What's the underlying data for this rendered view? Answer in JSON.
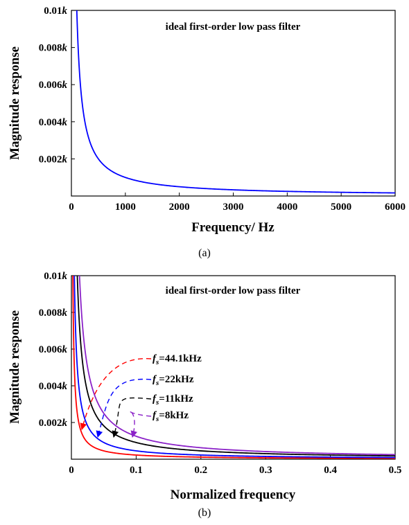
{
  "chart_data": [
    {
      "type": "line",
      "panel_label": "(a)",
      "title": "ideal first-order low pass filter",
      "xlabel": "Frequency/ Hz",
      "ylabel": "Magnitude response",
      "xlim": [
        0,
        6000
      ],
      "ylim": [
        0,
        0.01
      ],
      "x_ticks": [
        "0",
        "1000",
        "2000",
        "3000",
        "4000",
        "5000",
        "6000"
      ],
      "y_ticks": [
        {
          "value": 0.002,
          "num": "0.002",
          "sym": "k"
        },
        {
          "value": 0.004,
          "num": "0.004",
          "sym": "k"
        },
        {
          "value": 0.006,
          "num": "0.006",
          "sym": "k"
        },
        {
          "value": 0.008,
          "num": "0.008",
          "sym": "k"
        },
        {
          "value": 0.01,
          "num": "0.01",
          "sym": "k"
        }
      ],
      "grid": false,
      "series": [
        {
          "color": "#0000ff",
          "x": [
            100,
            150,
            200,
            250,
            300,
            400,
            500,
            700,
            1000,
            1500,
            2000,
            3000,
            4000,
            5000,
            6000
          ],
          "y": [
            0.01,
            0.00667,
            0.005,
            0.004,
            0.00333,
            0.0025,
            0.002,
            0.00143,
            0.001,
            0.000667,
            0.0005,
            0.000333,
            0.00025,
            0.0002,
            0.000167
          ]
        }
      ]
    },
    {
      "type": "line",
      "panel_label": "(b)",
      "title": "ideal first-order low pass filter",
      "xlabel": "Normalized frequency",
      "ylabel": "Magnitude response",
      "xlim": [
        0,
        0.5
      ],
      "ylim": [
        0,
        0.01
      ],
      "x_ticks": [
        "0",
        "0.1",
        "0.2",
        "0.3",
        "0.4",
        "0.5"
      ],
      "y_ticks": [
        {
          "value": 0.002,
          "num": "0.002",
          "sym": "k"
        },
        {
          "value": 0.004,
          "num": "0.004",
          "sym": "k"
        },
        {
          "value": 0.006,
          "num": "0.006",
          "sym": "k"
        },
        {
          "value": 0.008,
          "num": "0.008",
          "sym": "k"
        },
        {
          "value": 0.01,
          "num": "0.01",
          "sym": "k"
        }
      ],
      "grid": false,
      "series": [
        {
          "label_sym": "f",
          "label_sub": "s",
          "label_rest": "=44.1kHz",
          "color": "#ff0000",
          "c": 2.27e-05,
          "start": 0.00227
        },
        {
          "label_sym": "f",
          "label_sub": "s",
          "label_rest": "=22kHz",
          "color": "#0000ff",
          "c": 4.55e-05,
          "start": 0.00455
        },
        {
          "label_sym": "f",
          "label_sub": "s",
          "label_rest": "=11kHz",
          "color": "#000000",
          "c": 9.09e-05,
          "start": 0.00909
        },
        {
          "label_sym": "f",
          "label_sub": "s",
          "label_rest": "=8kHz",
          "color": "#8b22c8",
          "c": 0.000125,
          "start": 0.0125
        }
      ]
    }
  ]
}
